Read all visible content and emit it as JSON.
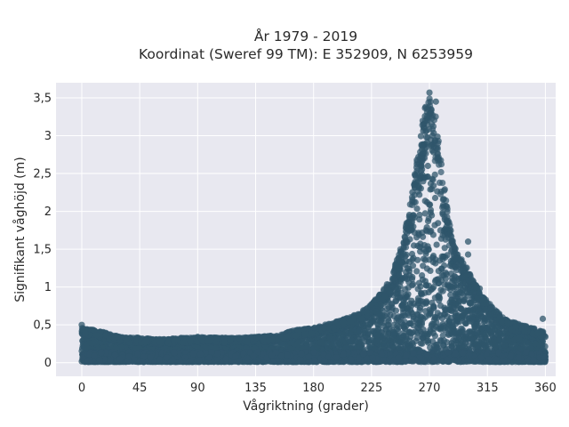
{
  "chart_data": {
    "type": "scatter",
    "title_line1": "År 1979 - 2019",
    "title_line2": "Koordinat (Sweref 99 TM): E 352909, N 6253959",
    "xlabel": "Vågriktning (grader)",
    "ylabel": "Signifikant våghöjd (m)",
    "xlim": [
      -20,
      368
    ],
    "ylim": [
      -0.18,
      3.7
    ],
    "x_ticks": [
      {
        "value": 0,
        "label": "0"
      },
      {
        "value": 45,
        "label": "45"
      },
      {
        "value": 90,
        "label": "90"
      },
      {
        "value": 135,
        "label": "135"
      },
      {
        "value": 180,
        "label": "180"
      },
      {
        "value": 225,
        "label": "225"
      },
      {
        "value": 270,
        "label": "270"
      },
      {
        "value": 315,
        "label": "315"
      },
      {
        "value": 360,
        "label": "360"
      }
    ],
    "y_ticks": [
      {
        "value": 0,
        "label": "0"
      },
      {
        "value": 0.5,
        "label": "0,5"
      },
      {
        "value": 1,
        "label": "1"
      },
      {
        "value": 1.5,
        "label": "1,5"
      },
      {
        "value": 2,
        "label": "2"
      },
      {
        "value": 2.5,
        "label": "2,5"
      },
      {
        "value": 3,
        "label": "3"
      },
      {
        "value": 3.5,
        "label": "3,5"
      }
    ],
    "grid": true,
    "legend": "none",
    "marker_color": "#2f556b",
    "plot_background": "#e8e8f0",
    "envelope": {
      "x": [
        0,
        10,
        20,
        30,
        45,
        60,
        90,
        120,
        150,
        165,
        180,
        195,
        210,
        220,
        230,
        240,
        250,
        255,
        260,
        265,
        270,
        275,
        280,
        285,
        290,
        300,
        310,
        320,
        330,
        340,
        350,
        360
      ],
      "y_max": [
        0.45,
        0.42,
        0.38,
        0.33,
        0.32,
        0.3,
        0.33,
        0.32,
        0.35,
        0.42,
        0.45,
        0.52,
        0.6,
        0.7,
        0.85,
        1.1,
        1.6,
        2.1,
        2.6,
        3.2,
        3.55,
        3.2,
        2.5,
        1.9,
        1.5,
        1.2,
        0.9,
        0.7,
        0.55,
        0.5,
        0.45,
        0.4
      ]
    },
    "outliers": [
      {
        "x": 0,
        "y": 0.5
      },
      {
        "x": 270,
        "y": 3.57
      },
      {
        "x": 275,
        "y": 3.45
      },
      {
        "x": 267,
        "y": 3.38
      },
      {
        "x": 300,
        "y": 1.43
      },
      {
        "x": 309,
        "y": 0.98
      },
      {
        "x": 358,
        "y": 0.58
      },
      {
        "x": 300,
        "y": 1.6
      }
    ]
  }
}
